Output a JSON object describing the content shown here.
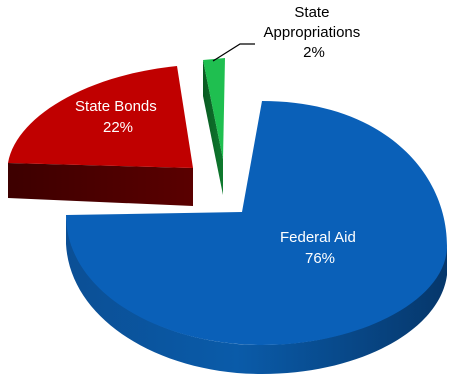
{
  "chart_data": {
    "type": "pie",
    "style": "3d-exploded",
    "title": "",
    "legend": "none",
    "slices": [
      {
        "category": "Federal Aid",
        "percent_label": "76%",
        "value": 76,
        "top_color": "#0a60b8",
        "side_color": "#06376b",
        "label_color": "#ffffff"
      },
      {
        "category": "State Bonds",
        "percent_label": "22%",
        "value": 22,
        "top_color": "#c00000",
        "side_color": "#4d0000",
        "label_color": "#ffffff"
      },
      {
        "category": "State Appropriations",
        "percent_label": "2%",
        "value": 2,
        "top_color": "#1fbf50",
        "side_color": "#0a5a22",
        "label_color": "#000000"
      }
    ]
  }
}
